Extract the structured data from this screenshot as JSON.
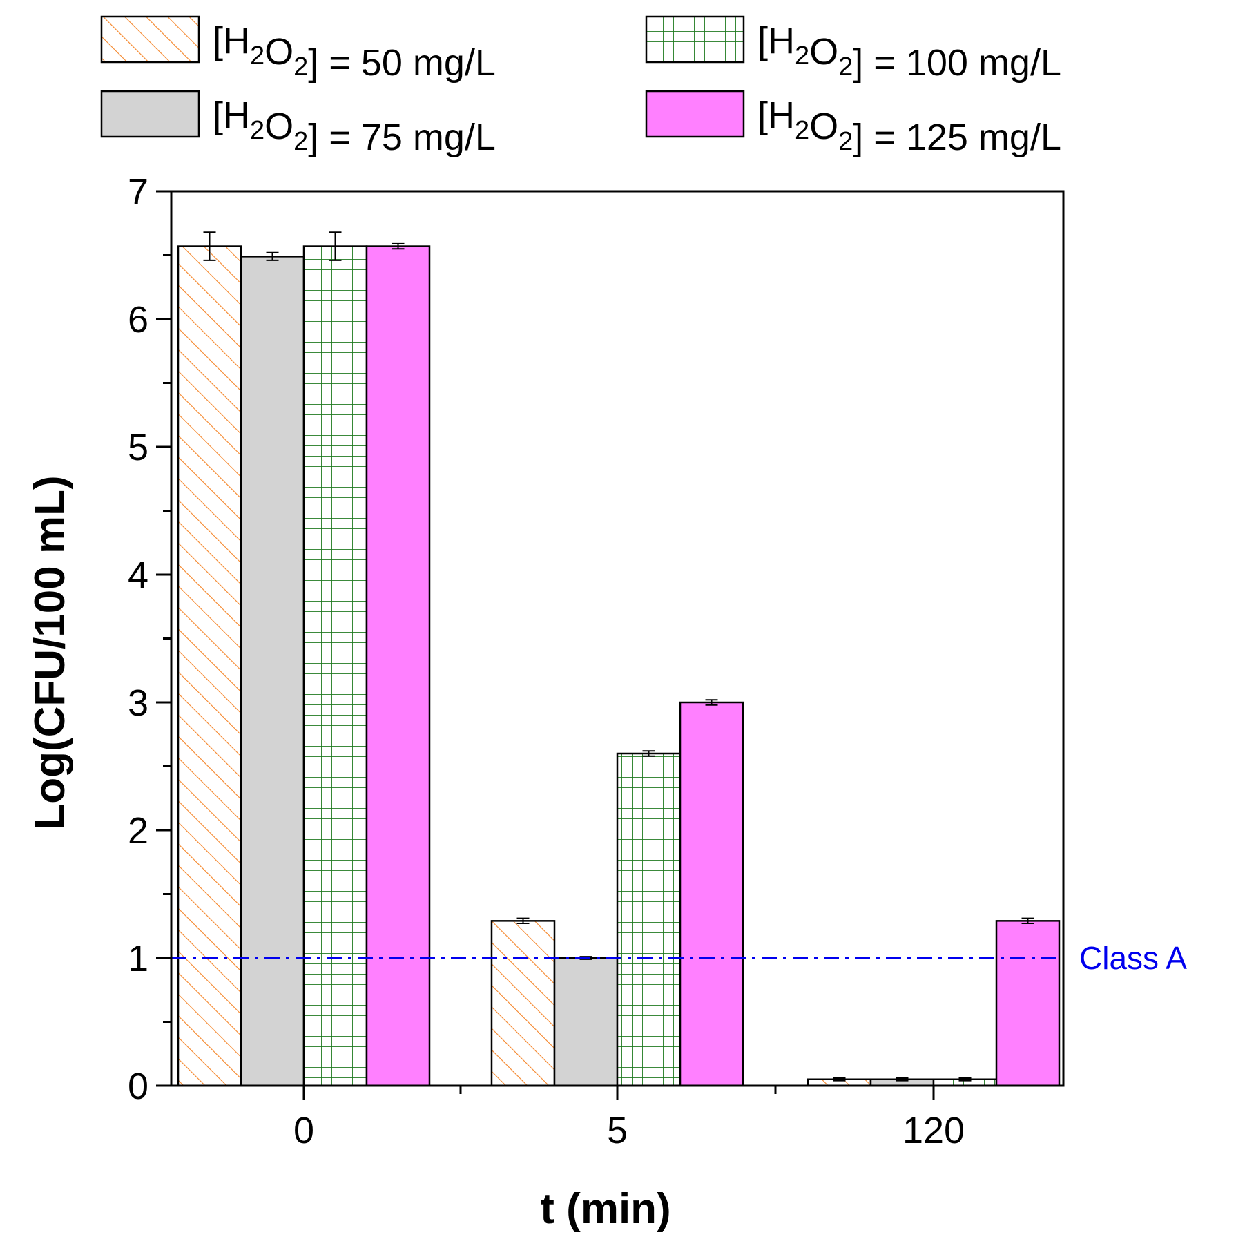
{
  "chart_data": {
    "type": "bar",
    "title": "",
    "xlabel": "t (min)",
    "ylabel": "Log(CFU/100 mL)",
    "categories": [
      "0",
      "5",
      "120"
    ],
    "ylim": [
      0,
      7
    ],
    "yticks": [
      "0",
      "1",
      "2",
      "3",
      "4",
      "5",
      "6",
      "7"
    ],
    "grid": false,
    "legend_position": "top",
    "series": [
      {
        "name_prefix": "[H",
        "name_sub1": "2",
        "name_mid": "O",
        "name_sub2": "2",
        "name_suffix": "] = 50 mg/L",
        "values": [
          6.57,
          1.29,
          0.05
        ],
        "errors": [
          0.11,
          0.02,
          0.01
        ],
        "pattern": "diagonal-hatch",
        "color": "#f5862a",
        "fill": "#ffffff"
      },
      {
        "name_prefix": "[H",
        "name_sub1": "2",
        "name_mid": "O",
        "name_sub2": "2",
        "name_suffix": "] = 75 mg/L",
        "values": [
          6.49,
          1.0,
          0.05
        ],
        "errors": [
          0.03,
          0.01,
          0.01
        ],
        "pattern": "solid",
        "color": "#d3d3d3",
        "fill": "#d3d3d3"
      },
      {
        "name_prefix": "[H",
        "name_sub1": "2",
        "name_mid": "O",
        "name_sub2": "2",
        "name_suffix": "] = 100 mg/L",
        "values": [
          6.57,
          2.6,
          0.05
        ],
        "errors": [
          0.11,
          0.02,
          0.01
        ],
        "pattern": "grid",
        "color": "#1f7a1f",
        "fill": "#ffffff"
      },
      {
        "name_prefix": "[H",
        "name_sub1": "2",
        "name_mid": "O",
        "name_sub2": "2",
        "name_suffix": "] = 125 mg/L",
        "values": [
          6.57,
          3.0,
          1.29
        ],
        "errors": [
          0.02,
          0.02,
          0.02
        ],
        "pattern": "solid",
        "color": "#ff80ff",
        "fill": "#ff80ff"
      }
    ],
    "reference_line": {
      "label": "Class A",
      "value": 1,
      "color": "#0000ee",
      "style": "dash-dot"
    }
  }
}
